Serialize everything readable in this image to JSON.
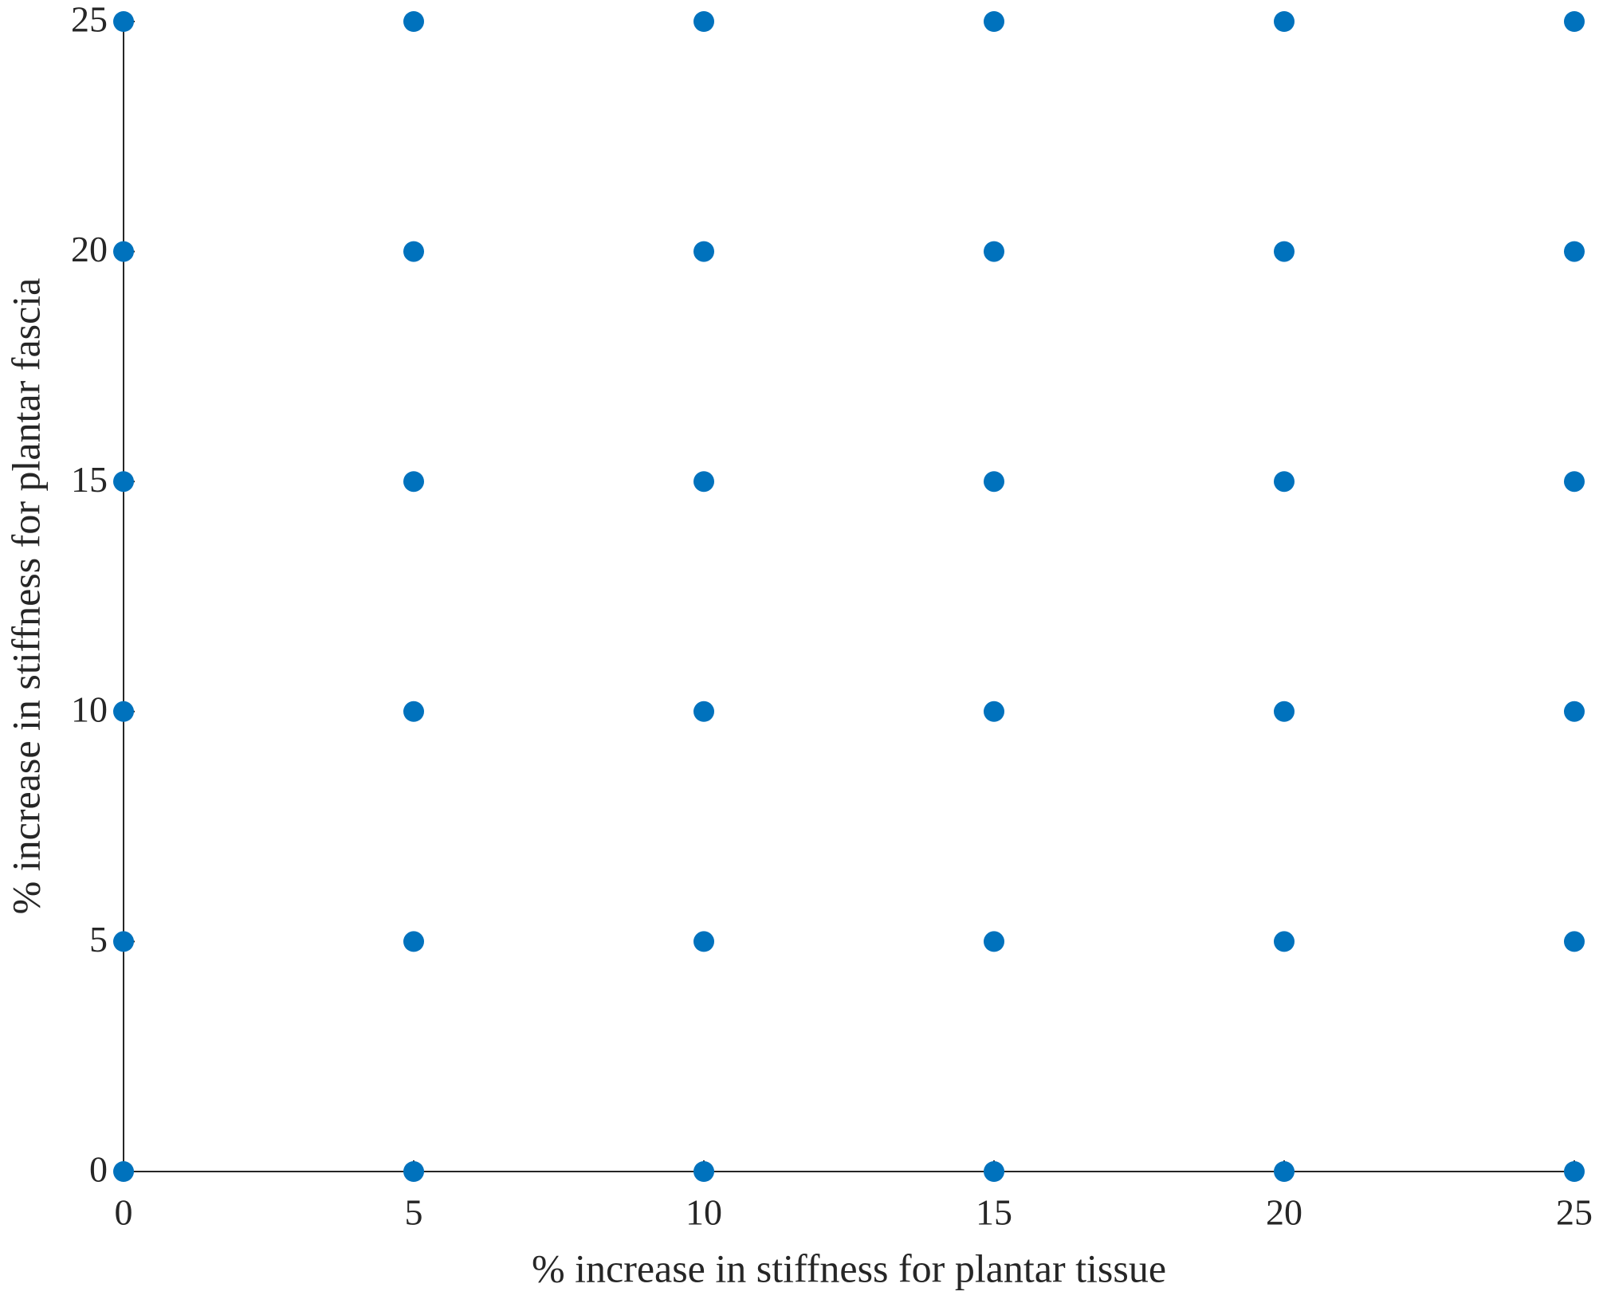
{
  "chart_data": {
    "type": "scatter",
    "xlabel": "% increase in stiffness for plantar tissue",
    "ylabel": "% increase in stiffness for plantar fascia",
    "x": [
      0,
      5,
      10,
      15,
      20,
      25,
      0,
      5,
      10,
      15,
      20,
      25,
      0,
      5,
      10,
      15,
      20,
      25,
      0,
      5,
      10,
      15,
      20,
      25,
      0,
      5,
      10,
      15,
      20,
      25,
      0,
      5,
      10,
      15,
      20,
      25
    ],
    "values": [
      0,
      0,
      0,
      0,
      0,
      0,
      5,
      5,
      5,
      5,
      5,
      5,
      10,
      10,
      10,
      10,
      10,
      10,
      15,
      15,
      15,
      15,
      15,
      15,
      20,
      20,
      20,
      20,
      20,
      20,
      25,
      25,
      25,
      25,
      25,
      25
    ],
    "color": "#0072bd",
    "xlim": [
      0,
      25
    ],
    "ylim": [
      0,
      25
    ],
    "xticks": [
      0,
      5,
      10,
      15,
      20,
      25
    ],
    "yticks": [
      0,
      5,
      10,
      15,
      20,
      25
    ],
    "grid": false
  }
}
